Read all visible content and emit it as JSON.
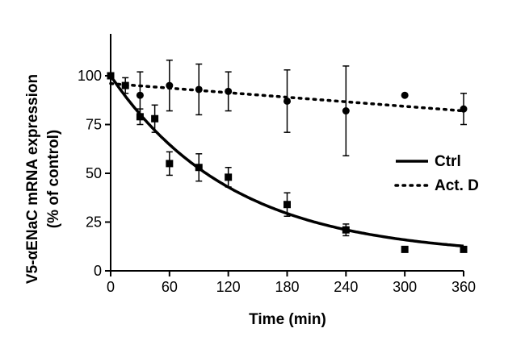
{
  "chart_data": {
    "type": "scatter",
    "xlabel": "Time (min)",
    "ylabel_lines": [
      "V5-αENaC mRNA expression",
      "(% of control)"
    ],
    "xlim": [
      0,
      360
    ],
    "ylim": [
      0,
      100
    ],
    "xticks": [
      0,
      60,
      120,
      180,
      240,
      300,
      360
    ],
    "yticks": [
      0,
      25,
      50,
      75,
      100
    ],
    "grid": false,
    "legend_position": "right",
    "series": [
      {
        "name": "Ctrl",
        "marker": "square",
        "line_style": "solid",
        "points": [
          {
            "x": 0,
            "y": 100,
            "err": 0
          },
          {
            "x": 15,
            "y": 95,
            "err": 0
          },
          {
            "x": 30,
            "y": 79,
            "err": 4
          },
          {
            "x": 45,
            "y": 78,
            "err": 7
          },
          {
            "x": 60,
            "y": 55,
            "err": 6
          },
          {
            "x": 90,
            "y": 53,
            "err": 7
          },
          {
            "x": 120,
            "y": 48,
            "err": 5
          },
          {
            "x": 180,
            "y": 34,
            "err": 6
          },
          {
            "x": 240,
            "y": 21,
            "err": 3
          },
          {
            "x": 300,
            "y": 11,
            "err": 0
          },
          {
            "x": 360,
            "y": 11,
            "err": 0
          }
        ],
        "fit": {
          "model": "exponential_decay",
          "y0": 100,
          "plateau": 7.5,
          "k": 0.008
        }
      },
      {
        "name": "Act. D",
        "marker": "circle",
        "line_style": "dotted",
        "points": [
          {
            "x": 0,
            "y": 100,
            "err": 0
          },
          {
            "x": 15,
            "y": 95,
            "err": 4
          },
          {
            "x": 30,
            "y": 90,
            "err": 12
          },
          {
            "x": 60,
            "y": 95,
            "err": 13
          },
          {
            "x": 90,
            "y": 93,
            "err": 13
          },
          {
            "x": 120,
            "y": 92,
            "err": 10
          },
          {
            "x": 180,
            "y": 87,
            "err": 16
          },
          {
            "x": 240,
            "y": 82,
            "err": 23
          },
          {
            "x": 300,
            "y": 90,
            "err": 0
          },
          {
            "x": 360,
            "y": 83,
            "err": 8
          }
        ],
        "fit": {
          "model": "linear",
          "from": [
            0,
            96
          ],
          "to": [
            360,
            82
          ]
        }
      }
    ]
  }
}
